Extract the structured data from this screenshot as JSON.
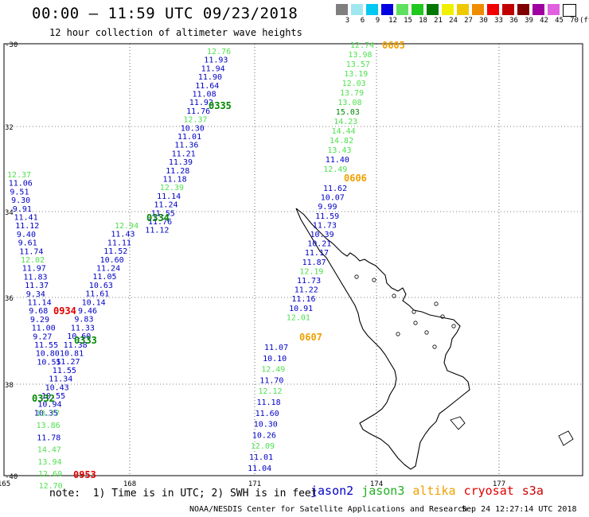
{
  "header": {
    "title": "00:00 – 11:59 UTC 09/23/2018",
    "subtitle": "12 hour collection of altimeter wave heights"
  },
  "scale": {
    "unit": "(ft)",
    "bins": [
      {
        "label": "3",
        "color": "#7f7f7f"
      },
      {
        "label": "6",
        "color": "#a0e8f0"
      },
      {
        "label": "9",
        "color": "#00c8f0"
      },
      {
        "label": "12",
        "color": "#0000e0"
      },
      {
        "label": "15",
        "color": "#60e060"
      },
      {
        "label": "18",
        "color": "#20c820"
      },
      {
        "label": "21",
        "color": "#007800"
      },
      {
        "label": "24",
        "color": "#f0f000"
      },
      {
        "label": "27",
        "color": "#f0c800"
      },
      {
        "label": "30",
        "color": "#f08c00"
      },
      {
        "label": "33",
        "color": "#f00000"
      },
      {
        "label": "36",
        "color": "#c00000"
      },
      {
        "label": "39",
        "color": "#800000"
      },
      {
        "label": "42",
        "color": "#a000a0"
      },
      {
        "label": "45",
        "color": "#e060e0"
      },
      {
        "label": "70",
        "color": "#ffffff"
      }
    ]
  },
  "axes": {
    "lat_labels": [
      "-30",
      "32",
      "34",
      "36",
      "38",
      "-40"
    ],
    "lon_labels": [
      "165",
      "168",
      "171",
      "174",
      "177"
    ]
  },
  "colors": {
    "jason2": "#0000c8",
    "jason3": "#50e050",
    "jason3_dark": "#008800",
    "altika": "#f0a000",
    "cryosat": "#e00000"
  },
  "tracks": [
    {
      "sat": "jason2",
      "time": "0335",
      "values": [
        "12.76",
        "11.93",
        "11.94",
        "11.90",
        "11.64",
        "11.08",
        "11.92",
        "11.76",
        "12.37",
        "10.30",
        "11.01",
        "11.36",
        "11.21",
        "11.39",
        "11.28",
        "11.18",
        "12.39",
        "11.14",
        "11.24",
        "11.55",
        "11.76",
        "11.12"
      ]
    },
    {
      "sat": "jason2",
      "time": "0334",
      "values": [
        "12.94",
        "11.43",
        "11.11",
        "11.52",
        "10.60",
        "11.24",
        "11.05",
        "10.63",
        "11.61",
        "10.14",
        "9.46",
        "9.83",
        "11.33",
        "10.60",
        "11.38",
        "10.81",
        "11.27",
        "11.55",
        "11.34",
        "10.43",
        "10.55",
        "10.94",
        "10.35"
      ]
    },
    {
      "sat": "jason2",
      "time": "0333",
      "values": [
        "12.37",
        "11.06",
        "9.51",
        "9.30",
        "9.91",
        "11.41",
        "11.12",
        "9.40",
        "9.61",
        "11.74",
        "12.02",
        "11.97",
        "11.83",
        "11.37",
        "9.34",
        "11.14",
        "9.68",
        "9.29",
        "11.00",
        "9.27",
        "11.55",
        "10.80",
        "10.55"
      ]
    },
    {
      "sat": "jason3",
      "time": "0332",
      "values": [
        "13.77",
        "13.86",
        "11.78",
        "14.47",
        "13.94",
        "12.69",
        "12.70"
      ]
    },
    {
      "sat": "cryosat",
      "time": "0934",
      "values": []
    },
    {
      "sat": "cryosat",
      "time": "0953",
      "values": []
    },
    {
      "sat": "altika",
      "time": "0605",
      "values": [
        "12.74",
        "13.98",
        "13.57",
        "13.19",
        "12.03",
        "13.79",
        "13.08",
        "15.03",
        "14.23",
        "14.44",
        "14.82",
        "13.43",
        "11.40",
        "12.49"
      ]
    },
    {
      "sat": "altika",
      "time": "0606",
      "values": [
        "11.62",
        "10.07",
        "9.99",
        "11.59",
        "11.73",
        "10.39",
        "10.21",
        "11.17",
        "11.87",
        "12.19",
        "11.73",
        "11.22",
        "11.16",
        "10.91",
        "12.01"
      ]
    },
    {
      "sat": "altika",
      "time": "0607",
      "values": [
        "11.07",
        "10.10",
        "12.49",
        "11.70",
        "12.12",
        "11.18",
        "11.60",
        "10.30",
        "10.26",
        "12.09",
        "11.01",
        "11.04"
      ]
    }
  ],
  "footer": {
    "note": "note:  1) Time is in UTC; 2) SWH is in feet",
    "satellites": [
      {
        "name": "jason2",
        "color": "#0000c8"
      },
      {
        "name": "jason3",
        "color": "#20b020"
      },
      {
        "name": "altika",
        "color": "#f0a000"
      },
      {
        "name": "cryosat",
        "color": "#e00000"
      },
      {
        "name": "s3a",
        "color": "#c80000"
      }
    ],
    "credit": "NOAA/NESDIS Center for Satellite Applications and Research",
    "date": "Sep 24 12:27:14 UTC 2018"
  }
}
